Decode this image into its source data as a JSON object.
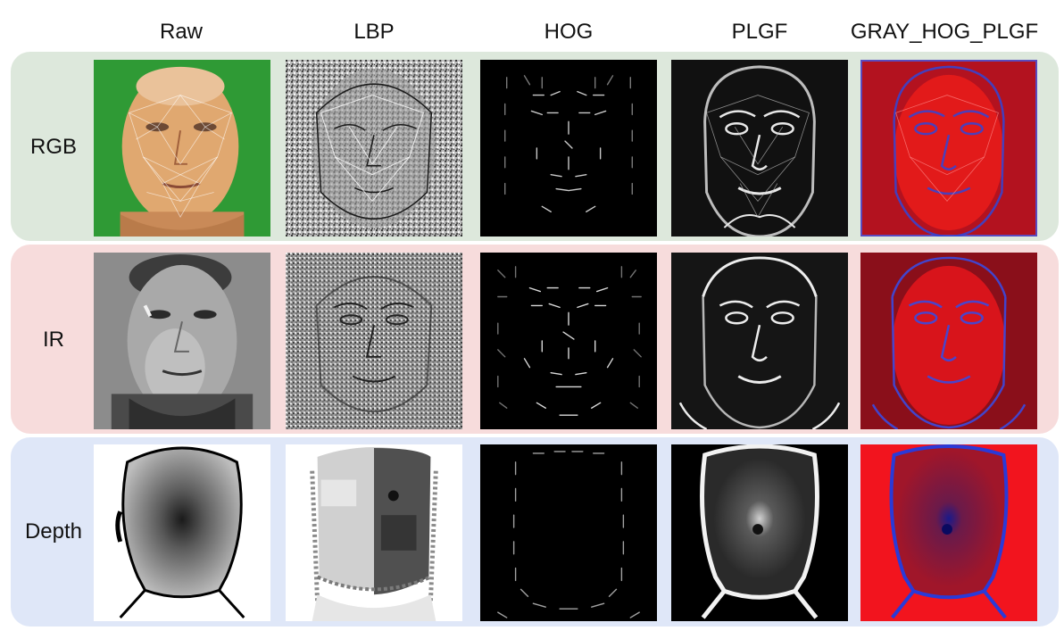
{
  "columns": [
    "Raw",
    "LBP",
    "HOG",
    "PLGF",
    "GRAY_HOG_PLGF"
  ],
  "rows": [
    {
      "label": "RGB",
      "panel_color": "#dde8dc"
    },
    {
      "label": "IR",
      "panel_color": "#f7dcdc"
    },
    {
      "label": "Depth",
      "panel_color": "#dfe7f8"
    }
  ]
}
